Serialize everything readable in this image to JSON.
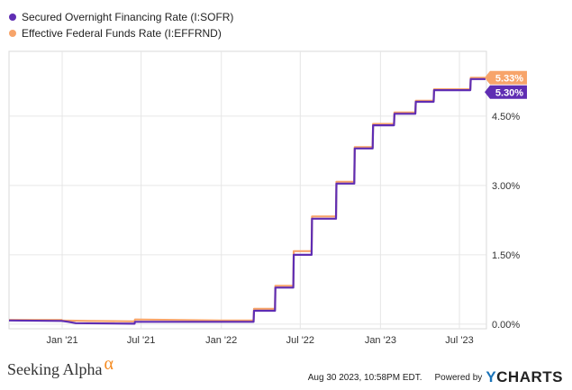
{
  "legend": [
    {
      "label": "Secured Overnight Financing Rate (I:SOFR)",
      "color": "#5f2db3"
    },
    {
      "label": "Effective Federal Funds Rate (I:EFFRND)",
      "color": "#f7a46a"
    }
  ],
  "footer": {
    "brand": "Seeking Alpha",
    "brand_mark": "α",
    "timestamp": "Aug 30 2023, 10:58PM EDT.",
    "powered": "Powered by",
    "ycharts_y": "Y",
    "ycharts_rest": "CHARTS"
  },
  "chart_data": {
    "type": "line",
    "xlim": [
      "2020-09-01",
      "2023-09-01"
    ],
    "ylim": [
      -0.1,
      5.9
    ],
    "x_ticks": [
      {
        "date": "2021-01-01",
        "label": "Jan '21"
      },
      {
        "date": "2021-07-01",
        "label": "Jul '21"
      },
      {
        "date": "2022-01-01",
        "label": "Jan '22"
      },
      {
        "date": "2022-07-01",
        "label": "Jul '22"
      },
      {
        "date": "2023-01-01",
        "label": "Jan '23"
      },
      {
        "date": "2023-07-01",
        "label": "Jul '23"
      }
    ],
    "y_ticks": [
      {
        "value": 0,
        "label": "0.00%"
      },
      {
        "value": 1.5,
        "label": "1.50%"
      },
      {
        "value": 3.0,
        "label": "3.00%"
      },
      {
        "value": 4.5,
        "label": "4.50%"
      }
    ],
    "grid": true,
    "series": [
      {
        "name": "Effective Federal Funds Rate (I:EFFRND)",
        "color": "#f7a46a",
        "end_label": "5.33%",
        "points": [
          [
            "2020-09-01",
            0.09
          ],
          [
            "2020-12-31",
            0.09
          ],
          [
            "2021-01-01",
            0.08
          ],
          [
            "2021-03-01",
            0.07
          ],
          [
            "2021-06-16",
            0.06
          ],
          [
            "2021-06-17",
            0.1
          ],
          [
            "2021-12-31",
            0.08
          ],
          [
            "2022-03-16",
            0.08
          ],
          [
            "2022-03-17",
            0.33
          ],
          [
            "2022-05-04",
            0.33
          ],
          [
            "2022-05-05",
            0.83
          ],
          [
            "2022-06-15",
            0.83
          ],
          [
            "2022-06-16",
            1.58
          ],
          [
            "2022-07-27",
            1.58
          ],
          [
            "2022-07-28",
            2.33
          ],
          [
            "2022-09-21",
            2.33
          ],
          [
            "2022-09-22",
            3.08
          ],
          [
            "2022-11-02",
            3.08
          ],
          [
            "2022-11-03",
            3.83
          ],
          [
            "2022-12-14",
            3.83
          ],
          [
            "2022-12-15",
            4.33
          ],
          [
            "2023-02-01",
            4.33
          ],
          [
            "2023-02-02",
            4.58
          ],
          [
            "2023-03-22",
            4.58
          ],
          [
            "2023-03-23",
            4.83
          ],
          [
            "2023-05-03",
            4.83
          ],
          [
            "2023-05-04",
            5.08
          ],
          [
            "2023-07-26",
            5.08
          ],
          [
            "2023-07-27",
            5.33
          ],
          [
            "2023-08-30",
            5.33
          ]
        ]
      },
      {
        "name": "Secured Overnight Financing Rate (I:SOFR)",
        "color": "#5f2db3",
        "end_label": "5.30%",
        "points": [
          [
            "2020-09-01",
            0.08
          ],
          [
            "2020-12-31",
            0.07
          ],
          [
            "2021-01-15",
            0.05
          ],
          [
            "2021-02-01",
            0.02
          ],
          [
            "2021-06-16",
            0.01
          ],
          [
            "2021-06-17",
            0.05
          ],
          [
            "2021-12-31",
            0.05
          ],
          [
            "2022-03-16",
            0.05
          ],
          [
            "2022-03-17",
            0.29
          ],
          [
            "2022-05-04",
            0.29
          ],
          [
            "2022-05-05",
            0.79
          ],
          [
            "2022-06-15",
            0.79
          ],
          [
            "2022-06-16",
            1.5
          ],
          [
            "2022-07-27",
            1.5
          ],
          [
            "2022-07-28",
            2.28
          ],
          [
            "2022-09-21",
            2.28
          ],
          [
            "2022-09-22",
            3.04
          ],
          [
            "2022-11-02",
            3.04
          ],
          [
            "2022-11-03",
            3.8
          ],
          [
            "2022-12-14",
            3.8
          ],
          [
            "2022-12-15",
            4.3
          ],
          [
            "2023-02-01",
            4.3
          ],
          [
            "2023-02-02",
            4.55
          ],
          [
            "2023-03-22",
            4.55
          ],
          [
            "2023-03-23",
            4.81
          ],
          [
            "2023-05-03",
            4.81
          ],
          [
            "2023-05-04",
            5.06
          ],
          [
            "2023-07-26",
            5.06
          ],
          [
            "2023-07-27",
            5.3
          ],
          [
            "2023-08-30",
            5.3
          ]
        ]
      }
    ]
  }
}
